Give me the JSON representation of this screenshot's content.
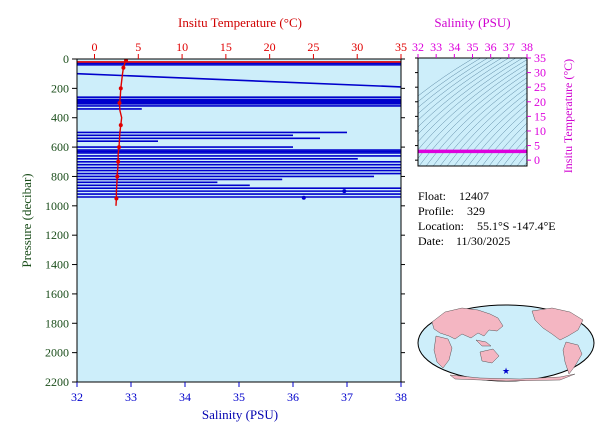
{
  "colors": {
    "temperature": "#e00000",
    "salinity": "#0000cc",
    "inset_salinity": "#dd00dd",
    "plot_bg": "#cdeefa",
    "pressure_axis": "#1a4d1a"
  },
  "info": {
    "float_label": "Float:",
    "float_value": "12407",
    "profile_label": "Profile:",
    "profile_value": "329",
    "location_label": "Location:",
    "location_value": "55.1°S  -147.4°E",
    "date_label": "Date:",
    "date_value": "11/30/2025"
  },
  "chart_data": [
    {
      "type": "line",
      "title": "",
      "top_axis_label": "Insitu Temperature (°C)",
      "bottom_axis_label": "Salinity (PSU)",
      "ylabel": "Pressure (decibar)",
      "temperature_range": [
        -2,
        35
      ],
      "temperature_ticks": [
        0,
        5,
        10,
        15,
        20,
        25,
        30,
        35
      ],
      "salinity_range": [
        32,
        38
      ],
      "salinity_ticks": [
        32,
        33,
        34,
        35,
        36,
        37,
        38
      ],
      "pressure_range": [
        0,
        2200
      ],
      "pressure_ticks": [
        0,
        200,
        400,
        600,
        800,
        1000,
        1200,
        1400,
        1600,
        1800,
        2000,
        2200
      ],
      "series": [
        {
          "variable": "temperature",
          "pressure": [
            10,
            20,
            40,
            60,
            100,
            150,
            200,
            250,
            280,
            300,
            350,
            400,
            450,
            500,
            550,
            600,
            620,
            650,
            700,
            750,
            780,
            800,
            850,
            900,
            950,
            1000
          ],
          "values": [
            3.6,
            3.5,
            3.4,
            3.3,
            3.2,
            3.1,
            3.0,
            2.95,
            2.9,
            2.85,
            2.9,
            3.1,
            3.0,
            2.9,
            2.85,
            2.8,
            2.75,
            2.7,
            2.7,
            2.65,
            2.6,
            2.6,
            2.55,
            2.5,
            2.5,
            2.45
          ]
        },
        {
          "variable": "salinity",
          "segments": [
            {
              "p": [
                30,
                30
              ],
              "s": [
                32.0,
                38.0
              ]
            },
            {
              "p": [
                40,
                40
              ],
              "s": [
                32.0,
                38.0
              ]
            },
            {
              "p": [
                100,
                190
              ],
              "s": [
                32.0,
                38.0
              ]
            },
            {
              "p": [
                260,
                260
              ],
              "s": [
                32.0,
                38.0
              ]
            },
            {
              "p": [
                275,
                275
              ],
              "s": [
                32.0,
                38.0
              ]
            },
            {
              "p": [
                285,
                285
              ],
              "s": [
                32.0,
                38.0
              ]
            },
            {
              "p": [
                295,
                295
              ],
              "s": [
                32.0,
                38.0
              ]
            },
            {
              "p": [
                305,
                305
              ],
              "s": [
                32.0,
                38.0
              ]
            },
            {
              "p": [
                320,
                320
              ],
              "s": [
                32.0,
                38.0
              ]
            },
            {
              "p": [
                340,
                340
              ],
              "s": [
                32.0,
                33.2
              ]
            },
            {
              "p": [
                500,
                500
              ],
              "s": [
                32.0,
                37.0
              ]
            },
            {
              "p": [
                520,
                520
              ],
              "s": [
                32.0,
                36.0
              ]
            },
            {
              "p": [
                540,
                540
              ],
              "s": [
                32.0,
                36.5
              ]
            },
            {
              "p": [
                560,
                560
              ],
              "s": [
                32.0,
                33.5
              ]
            },
            {
              "p": [
                600,
                600
              ],
              "s": [
                32.0,
                36.0
              ]
            },
            {
              "p": [
                620,
                620
              ],
              "s": [
                32.0,
                38.0
              ]
            },
            {
              "p": [
                630,
                630
              ],
              "s": [
                32.0,
                38.0
              ]
            },
            {
              "p": [
                640,
                640
              ],
              "s": [
                32.0,
                38.0
              ]
            },
            {
              "p": [
                660,
                660
              ],
              "s": [
                32.0,
                38.0
              ]
            },
            {
              "p": [
                680,
                680
              ],
              "s": [
                32.0,
                37.2
              ]
            },
            {
              "p": [
                700,
                700
              ],
              "s": [
                32.0,
                38.0
              ]
            },
            {
              "p": [
                720,
                720
              ],
              "s": [
                32.0,
                38.0
              ]
            },
            {
              "p": [
                740,
                740
              ],
              "s": [
                32.0,
                38.0
              ]
            },
            {
              "p": [
                760,
                760
              ],
              "s": [
                32.0,
                38.0
              ]
            },
            {
              "p": [
                780,
                780
              ],
              "s": [
                32.0,
                38.0
              ]
            },
            {
              "p": [
                800,
                800
              ],
              "s": [
                32.0,
                37.5
              ]
            },
            {
              "p": [
                820,
                820
              ],
              "s": [
                32.0,
                35.8
              ]
            },
            {
              "p": [
                840,
                840
              ],
              "s": [
                32.0,
                34.6
              ]
            },
            {
              "p": [
                860,
                860
              ],
              "s": [
                32.0,
                35.2
              ]
            },
            {
              "p": [
                880,
                880
              ],
              "s": [
                32.0,
                38.0
              ]
            },
            {
              "p": [
                900,
                900
              ],
              "s": [
                32.0,
                38.0
              ]
            },
            {
              "p": [
                920,
                920
              ],
              "s": [
                32.0,
                38.0
              ]
            },
            {
              "p": [
                940,
                940
              ],
              "s": [
                32.0,
                38.0
              ]
            }
          ],
          "points": [
            {
              "p": 900,
              "s": 36.95
            },
            {
              "p": 945,
              "s": 36.2
            }
          ]
        }
      ]
    },
    {
      "type": "line",
      "title": "",
      "top_axis_label": "Salinity (PSU)",
      "right_axis_label": "Insitu Temperature (°C)",
      "salinity_range": [
        32,
        38
      ],
      "salinity_ticks": [
        32,
        33,
        34,
        35,
        36,
        37,
        38
      ],
      "temperature_range": [
        -2,
        35
      ],
      "temperature_ticks": [
        0,
        5,
        10,
        15,
        20,
        25,
        30,
        35
      ],
      "ts_temperature": 3.0
    }
  ]
}
